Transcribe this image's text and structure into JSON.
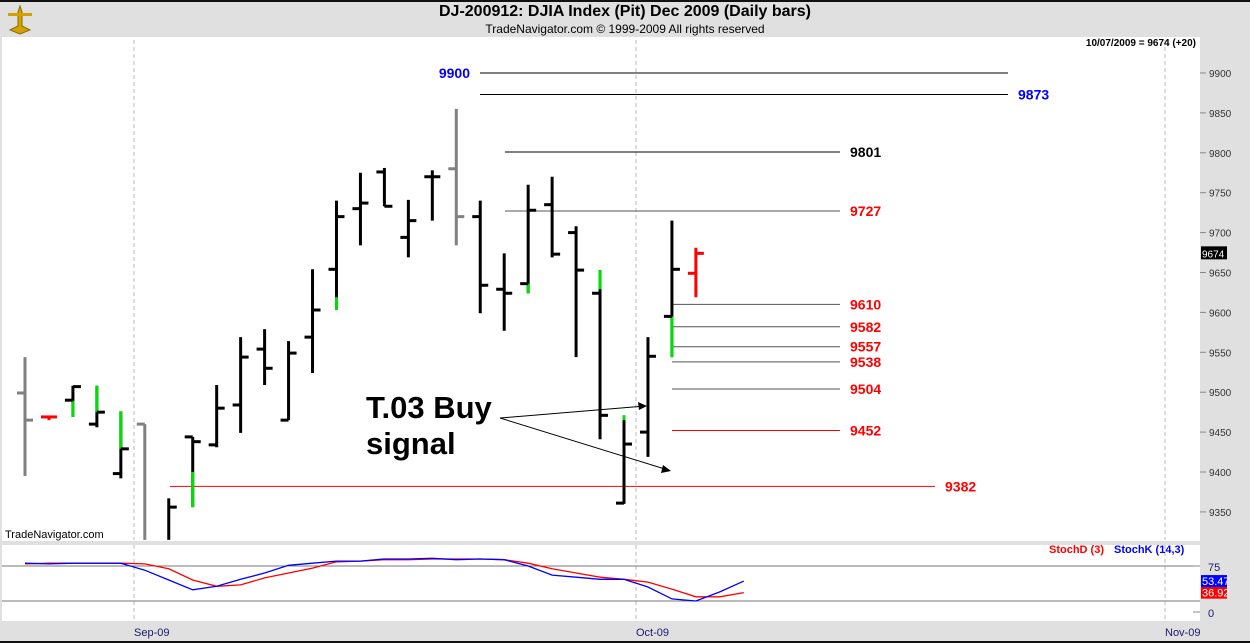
{
  "header": {
    "title": "DJ-200912:  DJIA Index (Pit) Dec 2009  (Daily bars)",
    "subtitle": "TradeNavigator.com © 1999-2009 All rights reserved",
    "last_info": "10/07/2009 = 9674 (+20)"
  },
  "watermark": "TradeNavigator.com",
  "annotation": {
    "line1": "T.03 Buy",
    "line2": "signal"
  },
  "colors": {
    "up_highlight": "#00e000",
    "bar": "#000000",
    "prior_bar": "#808080",
    "current_bar": "#ff0000",
    "level_red": "#ff0000",
    "level_blue": "#0000ff",
    "stochD": "#ff0000",
    "stochK": "#0000ff"
  },
  "chart_data": [
    {
      "type": "ohlc",
      "yaxis": {
        "ticks": [
          9900,
          9850,
          9800,
          9750,
          9700,
          9650,
          9600,
          9550,
          9500,
          9450,
          9400,
          9350
        ],
        "current_price_label": "9674"
      },
      "xaxis": {
        "ticks": [
          "Sep-09",
          "Oct-09",
          "Nov-09"
        ]
      },
      "bars": [
        {
          "o": 9499,
          "h": 9544,
          "l": 9395,
          "c": 9465,
          "color": "gray"
        },
        {
          "o": 9469,
          "h": 9469,
          "l": 9465,
          "c": 9469,
          "color": "red"
        },
        {
          "o": 9490,
          "h": 9508,
          "l": 9469,
          "c": 9507,
          "green": [
            9469,
            9489
          ]
        },
        {
          "o": 9460,
          "h": 9508,
          "l": 9456,
          "c": 9475,
          "green": [
            9475,
            9508
          ]
        },
        {
          "o": 9398,
          "h": 9476,
          "l": 9392,
          "c": 9429,
          "green": [
            9429,
            9476
          ]
        },
        {
          "o": 9460,
          "h": 9460,
          "l": 9315,
          "c": null,
          "color": "gray"
        },
        {
          "o": null,
          "h": 9367,
          "l": 9315,
          "c": 9356
        },
        {
          "o": 9444,
          "h": 9444,
          "l": 9356,
          "c": 9438,
          "green": [
            9356,
            9400
          ]
        },
        {
          "o": 9434,
          "h": 9509,
          "l": 9431,
          "c": 9480
        },
        {
          "o": 9484,
          "h": 9569,
          "l": 9449,
          "c": 9544
        },
        {
          "o": 9554,
          "h": 9579,
          "l": 9509,
          "c": 9530
        },
        {
          "o": 9465,
          "h": 9564,
          "l": 9465,
          "c": 9549
        },
        {
          "o": 9569,
          "h": 9654,
          "l": 9524,
          "c": 9603
        },
        {
          "o": 9654,
          "h": 9740,
          "l": 9603,
          "c": 9720,
          "green": [
            9603,
            9619
          ]
        },
        {
          "o": 9730,
          "h": 9775,
          "l": 9684,
          "c": 9737
        },
        {
          "o": 9776,
          "h": 9781,
          "l": 9733,
          "c": 9733
        },
        {
          "o": 9694,
          "h": 9741,
          "l": 9669,
          "c": 9715
        },
        {
          "o": 9770,
          "h": 9778,
          "l": 9715,
          "c": 9770
        },
        {
          "o": 9780,
          "h": 9855,
          "l": 9684,
          "c": 9720,
          "color": "gray"
        },
        {
          "o": 9720,
          "h": 9740,
          "l": 9599,
          "c": 9634
        },
        {
          "o": 9629,
          "h": 9674,
          "l": 9577,
          "c": 9624
        },
        {
          "o": 9636,
          "h": 9760,
          "l": 9624,
          "c": 9728,
          "green": [
            9624,
            9636
          ]
        },
        {
          "o": 9735,
          "h": 9770,
          "l": 9669,
          "c": 9673
        },
        {
          "o": 9700,
          "h": 9708,
          "l": 9544,
          "c": 9653
        },
        {
          "o": 9624,
          "h": 9653,
          "l": 9441,
          "c": 9471,
          "green": [
            9629,
            9653
          ]
        },
        {
          "o": 9361,
          "h": 9471,
          "l": 9360,
          "c": 9435,
          "green": [
            9465,
            9471
          ]
        },
        {
          "o": 9450,
          "h": 9569,
          "l": 9419,
          "c": 9545
        },
        {
          "o": 9595,
          "h": 9715,
          "l": 9544,
          "c": 9654,
          "green": [
            9544,
            9595
          ]
        },
        {
          "o": 9649,
          "h": 9681,
          "l": 9619,
          "c": 9674,
          "color": "red"
        }
      ],
      "levels": [
        {
          "label": "9900",
          "value": 9900,
          "color": "blue"
        },
        {
          "label": "9873",
          "value": 9873,
          "color": "blue"
        },
        {
          "label": "9801",
          "value": 9801,
          "color": "black"
        },
        {
          "label": "9727",
          "value": 9727,
          "color": "red"
        },
        {
          "label": "9610",
          "value": 9610,
          "color": "red"
        },
        {
          "label": "9582",
          "value": 9582,
          "color": "red"
        },
        {
          "label": "9557",
          "value": 9557,
          "color": "red"
        },
        {
          "label": "9538",
          "value": 9538,
          "color": "red"
        },
        {
          "label": "9504",
          "value": 9504,
          "color": "red"
        },
        {
          "label": "9452",
          "value": 9452,
          "color": "red"
        },
        {
          "label": "9382",
          "value": 9382,
          "color": "red"
        }
      ]
    },
    {
      "type": "line",
      "yaxis": {
        "ticks": [
          75,
          0
        ],
        "reference_lines": [
          75,
          25
        ]
      },
      "series": [
        {
          "name": "StochD (3)",
          "color": "#ff0000",
          "last_label": "36.92",
          "values": [
            78,
            79,
            79,
            79,
            79,
            78,
            71,
            55,
            46,
            48,
            58,
            65,
            72,
            81,
            82,
            84,
            84,
            85,
            85,
            85,
            84,
            79,
            71,
            65,
            59,
            56,
            52,
            42,
            31,
            31,
            36.92
          ]
        },
        {
          "name": "StochK (14,3)",
          "color": "#0000ff",
          "last_label": "53.47",
          "values": [
            79,
            78,
            79,
            79,
            79,
            69,
            55,
            41,
            46,
            56,
            65,
            76,
            79,
            82,
            82,
            85,
            85,
            86,
            84,
            85,
            84,
            75,
            62,
            59,
            56,
            56,
            45,
            28,
            25,
            38,
            53.47
          ]
        }
      ]
    }
  ]
}
